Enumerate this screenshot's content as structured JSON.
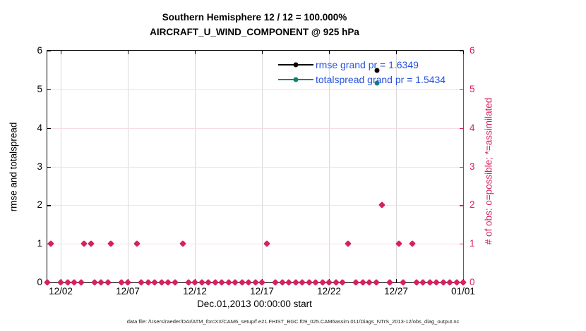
{
  "figure": {
    "title_line1": "Southern Hemisphere 12 / 12 = 100.000%",
    "title_line2": "AIRCRAFT_U_WIND_COMPONENT @ 925 hPa",
    "xlabel": "Dec.01,2013 00:00:00 start",
    "ylabel_left": "rmse and totalspread",
    "ylabel_right": "# of obs: o=possible; *=assimilated",
    "footer": "data file: /Users/raeder/DAI/ATM_forcXX/CAM6_setup/f.e21.FHIST_BGC.f09_025.CAM6assim.011/Diags_NTrS_2013-12/obs_diag_output.nc"
  },
  "colors": {
    "obs_axis": "#d6215f",
    "obs_marker": "#d6215f",
    "rmse": "#000000",
    "totalspread": "#0e8270",
    "legend_text": "#2653e0",
    "grid_x": "#d9d9d9",
    "grid_y": "#f6dee6",
    "axis_black": "#000000"
  },
  "legend": {
    "entries": [
      {
        "label": "rmse grand pr = 1.6349",
        "series": "rmse"
      },
      {
        "label": "totalspread grand pr = 1.5434",
        "series": "totalspread"
      }
    ]
  },
  "chart_data": {
    "type": "scatter",
    "title": "Southern Hemisphere 12 / 12 = 100.000% — AIRCRAFT_U_WIND_COMPONENT @ 925 hPa",
    "xlabel": "Dec.01,2013 00:00:00 start",
    "ylabel_left": "rmse and totalspread",
    "ylabel_right": "# of obs: o=possible; *=assimilated",
    "x_axis": {
      "unit": "days since Dec.01,2013 00:00:00",
      "range": [
        0,
        31
      ],
      "tick_days": [
        1,
        6,
        11,
        16,
        21,
        26,
        31
      ],
      "tick_labels": [
        "12/02",
        "12/07",
        "12/12",
        "12/17",
        "12/22",
        "12/27",
        "01/01"
      ],
      "grid_days": [
        1,
        6,
        11,
        16,
        21,
        26
      ]
    },
    "y_axis_left": {
      "range": [
        0,
        6
      ],
      "ticks": [
        0,
        1,
        2,
        3,
        4,
        5,
        6
      ],
      "grid_values": [
        1,
        2,
        3,
        4,
        5
      ]
    },
    "y_axis_right": {
      "range": [
        0,
        6
      ],
      "ticks": [
        0,
        1,
        2,
        3,
        4,
        5,
        6
      ]
    },
    "grand_values": {
      "rmse_grand_prior": 1.6349,
      "totalspread_grand_prior": 1.5434
    },
    "series": [
      {
        "name": "rmse",
        "marker": "circle",
        "points": [
          {
            "x": 24.6,
            "y": 5.49
          }
        ]
      },
      {
        "name": "totalspread",
        "marker": "circle",
        "points": [
          {
            "x": 24.6,
            "y": 5.16
          }
        ]
      }
    ],
    "obs_counts": {
      "marker": "diamond",
      "zero_days": [
        0,
        1,
        1.5,
        2,
        2.5,
        3.5,
        4,
        4.5,
        5.5,
        6,
        7,
        7.5,
        8,
        8.5,
        9,
        9.5,
        10.5,
        11,
        11.5,
        12,
        12.5,
        13,
        13.5,
        14,
        14.5,
        15,
        15.5,
        16,
        17,
        17.5,
        18,
        18.5,
        19,
        19.5,
        20,
        20.5,
        21,
        21.5,
        22,
        23,
        23.5,
        24,
        24.5,
        25.5,
        26.5,
        27.5,
        28,
        28.5,
        29,
        29.5,
        30,
        30.5,
        31
      ],
      "one_days": [
        0.25,
        2.75,
        3.25,
        4.75,
        6.7,
        10.1,
        16.35,
        22.4,
        26.2,
        27.2
      ],
      "two_days": [
        24.95
      ]
    }
  }
}
